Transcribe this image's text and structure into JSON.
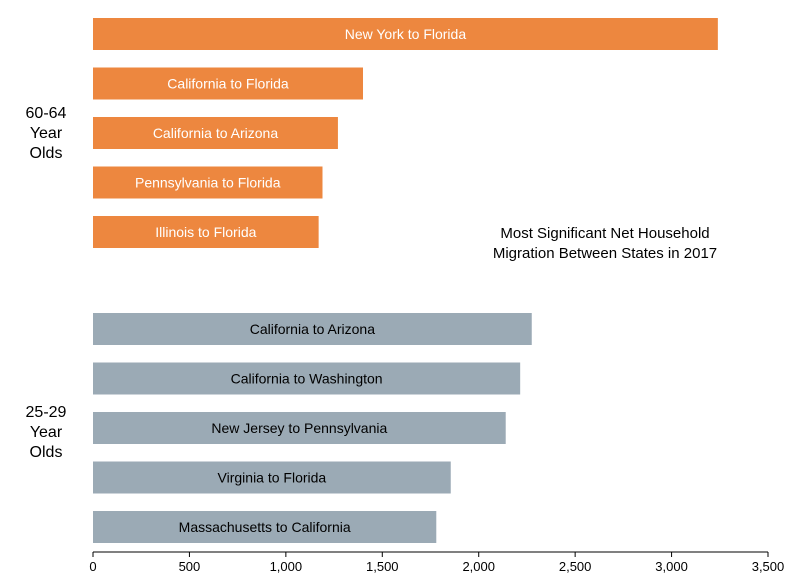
{
  "chart_data": {
    "type": "bar",
    "orientation": "horizontal",
    "title": "Most Significant Net Household Migration Between States in 2017",
    "xlim": [
      0,
      3500
    ],
    "xticks": [
      0,
      500,
      1000,
      1500,
      2000,
      2500,
      3000,
      3500
    ],
    "xtick_labels": [
      "0",
      "500",
      "1,000",
      "1,500",
      "2,000",
      "2,500",
      "3,000",
      "3,500"
    ],
    "groups": [
      {
        "name": "60-64 Year Olds",
        "label_lines": [
          "60-64",
          "Year",
          "Olds"
        ],
        "color": "#ED873F",
        "label_color": "#ffffff",
        "bars": [
          {
            "label": "New York to Florida",
            "value": 3240
          },
          {
            "label": "California to Florida",
            "value": 1400
          },
          {
            "label": "California to Arizona",
            "value": 1270
          },
          {
            "label": "Pennsylvania  to Florida",
            "value": 1190
          },
          {
            "label": "Illinois to Florida",
            "value": 1170
          }
        ]
      },
      {
        "name": "25-29 Year Olds",
        "label_lines": [
          "25-29",
          "Year",
          "Olds"
        ],
        "color": "#9BAAB5",
        "label_color": "#000000",
        "bars": [
          {
            "label": "California to Arizona",
            "value": 2275
          },
          {
            "label": "California to Washington",
            "value": 2215
          },
          {
            "label": "New Jersey to Pennsylvania",
            "value": 2140
          },
          {
            "label": "Virginia to Florida",
            "value": 1855
          },
          {
            "label": "Massachusetts to California",
            "value": 1780
          }
        ]
      }
    ]
  }
}
